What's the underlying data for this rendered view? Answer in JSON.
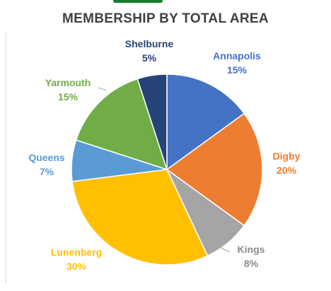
{
  "chart_data": {
    "type": "pie",
    "title": "MEMBERSHIP BY TOTAL AREA",
    "categories": [
      "Annapolis",
      "Digby",
      "Kings",
      "Lunenberg",
      "Queens",
      "Yarmouth",
      "Shelburne"
    ],
    "values": [
      15,
      20,
      8,
      30,
      7,
      15,
      5
    ],
    "value_labels": [
      "15%",
      "20%",
      "8%",
      "30%",
      "7%",
      "15%",
      "5%"
    ],
    "colors": [
      "#4472c4",
      "#ed7d31",
      "#a5a5a5",
      "#ffc000",
      "#5b9bd5",
      "#70ad47",
      "#264478"
    ],
    "start_angle_deg": 0,
    "direction": "clockwise",
    "legend": "none",
    "labels": "outside-with-percent"
  }
}
